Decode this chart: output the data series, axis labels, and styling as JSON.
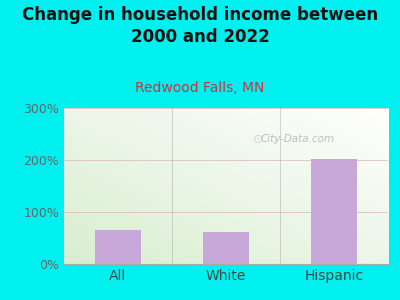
{
  "title": "Change in household income between\n2000 and 2022",
  "subtitle": "Redwood Falls, MN",
  "categories": [
    "All",
    "White",
    "Hispanic"
  ],
  "values": [
    65,
    62,
    202
  ],
  "bar_color": "#C8A8D8",
  "background_color": "#00EFEF",
  "plot_bg_colors": [
    "#D8EED0",
    "#F0F8F0",
    "#FAFAFA",
    "#FFFFFF"
  ],
  "ylabel_color": "#666666",
  "title_color": "#111111",
  "subtitle_color": "#CC3344",
  "ylim": [
    0,
    300
  ],
  "yticks": [
    0,
    100,
    200,
    300
  ],
  "ytick_labels": [
    "0%",
    "100%",
    "200%",
    "300%"
  ],
  "watermark": "City-Data.com",
  "grid_color": "#DDCCCC",
  "title_fontsize": 12,
  "subtitle_fontsize": 10,
  "tick_label_fontsize": 9,
  "xlabel_fontsize": 10
}
